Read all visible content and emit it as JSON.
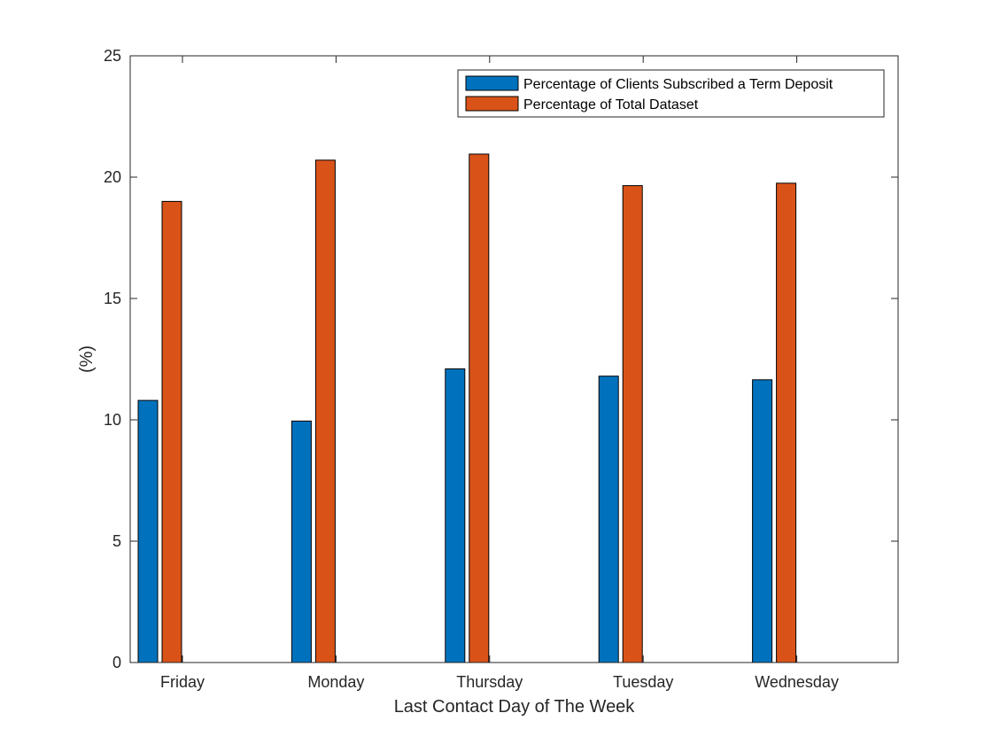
{
  "chart_data": {
    "type": "bar",
    "title": "",
    "xlabel": "Last Contact Day of The Week",
    "ylabel": "(%)",
    "ylim": [
      0,
      25
    ],
    "yticks": [
      0,
      5,
      10,
      15,
      20,
      25
    ],
    "grid": false,
    "legend_position": "top-right",
    "categories": [
      "Friday",
      "Monday",
      "Thursday",
      "Tuesday",
      "Wednesday"
    ],
    "series": [
      {
        "name": "Percentage of Clients Subscribed a Term Deposit",
        "color": "#0072BD",
        "values": [
          10.8,
          9.95,
          12.1,
          11.8,
          11.65
        ]
      },
      {
        "name": "Percentage of Total Dataset",
        "color": "#D95319",
        "values": [
          19.0,
          20.7,
          20.95,
          19.65,
          19.75
        ]
      }
    ]
  }
}
